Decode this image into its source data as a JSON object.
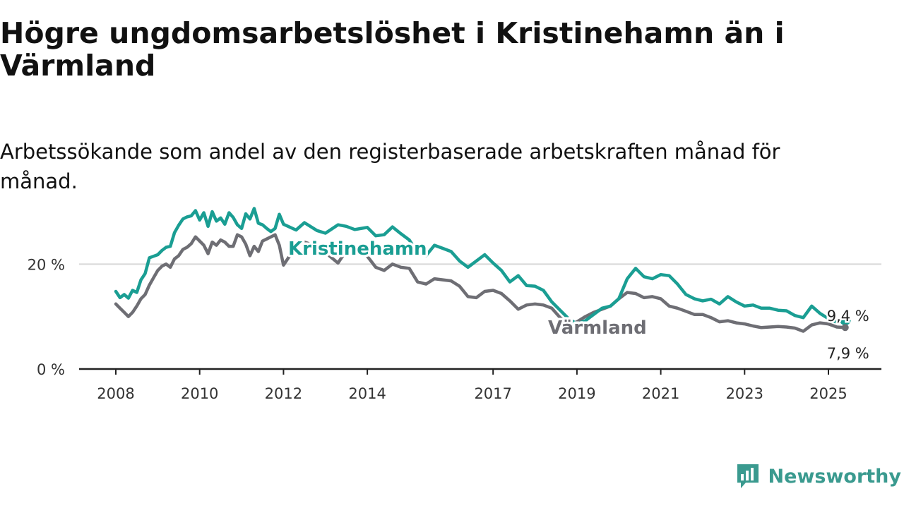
{
  "title": "Högre ungdomsarbetslöshet i Kristinehamn än i Värmland",
  "subtitle": "Arbetssökande som andel av den registerbaserade arbetskraften månad för månad.",
  "brand": {
    "name": "Newsworthy",
    "icon": "newsworthy-logo-icon"
  },
  "colors": {
    "kristinehamn": "#1a9e93",
    "varmland": "#6e6e74",
    "grid": "#d8d8d8",
    "axis": "#222222"
  },
  "chart_data": {
    "type": "line",
    "title": "Högre ungdomsarbetslöshet i Kristinehamn än i Värmland",
    "subtitle": "Arbetssökande som andel av den registerbaserade arbetskraften månad för månad.",
    "xlabel": "",
    "ylabel": "",
    "ylim": [
      0,
      30
    ],
    "y_ticks": [
      0,
      20
    ],
    "y_tick_labels": [
      "0 %",
      "20 %"
    ],
    "x_ticks": [
      2008,
      2010,
      2012,
      2014,
      2017,
      2019,
      2021,
      2023,
      2025
    ],
    "x_tick_labels": [
      "2008",
      "2010",
      "2012",
      "2014",
      "2017",
      "2019",
      "2021",
      "2023",
      "2025"
    ],
    "grid": "horizontal",
    "series": [
      {
        "name": "Kristinehamn",
        "x": [
          2008.0,
          2008.1,
          2008.2,
          2008.3,
          2008.4,
          2008.5,
          2008.6,
          2008.7,
          2008.8,
          2008.9,
          2009.0,
          2009.1,
          2009.2,
          2009.3,
          2009.4,
          2009.5,
          2009.6,
          2009.7,
          2009.8,
          2009.9,
          2010.0,
          2010.1,
          2010.2,
          2010.3,
          2010.4,
          2010.5,
          2010.6,
          2010.7,
          2010.8,
          2010.9,
          2011.0,
          2011.1,
          2011.2,
          2011.3,
          2011.4,
          2011.5,
          2011.6,
          2011.7,
          2011.8,
          2011.9,
          2012.0,
          2012.3,
          2012.5,
          2012.8,
          2013.0,
          2013.3,
          2013.5,
          2013.7,
          2014.0,
          2014.2,
          2014.4,
          2014.6,
          2014.8,
          2015.0,
          2015.2,
          2015.4,
          2015.6,
          2015.8,
          2016.0,
          2016.2,
          2016.4,
          2016.6,
          2016.8,
          2017.0,
          2017.2,
          2017.4,
          2017.6,
          2017.8,
          2018.0,
          2018.2,
          2018.4,
          2018.6,
          2018.8,
          2019.0,
          2019.2,
          2019.4,
          2019.6,
          2019.8,
          2020.0,
          2020.2,
          2020.4,
          2020.6,
          2020.8,
          2021.0,
          2021.2,
          2021.4,
          2021.6,
          2021.8,
          2022.0,
          2022.2,
          2022.4,
          2022.6,
          2022.8,
          2023.0,
          2023.2,
          2023.4,
          2023.6,
          2023.8,
          2024.0,
          2024.2,
          2024.4,
          2024.6,
          2024.8,
          2025.0,
          2025.2,
          2025.4
        ],
        "values": [
          14.8,
          13.6,
          14.2,
          13.5,
          15.0,
          14.6,
          17.0,
          18.2,
          21.2,
          21.5,
          21.8,
          22.6,
          23.2,
          23.4,
          26.0,
          27.4,
          28.6,
          29.0,
          29.2,
          30.2,
          28.4,
          29.8,
          27.2,
          30.0,
          28.2,
          28.8,
          27.6,
          29.8,
          28.9,
          27.5,
          26.8,
          29.6,
          28.6,
          30.6,
          27.8,
          27.5,
          26.8,
          26.2,
          26.8,
          29.5,
          27.6,
          26.5,
          27.9,
          26.4,
          25.9,
          27.5,
          27.2,
          26.6,
          27.0,
          25.4,
          25.6,
          27.1,
          25.8,
          24.6,
          22.2,
          21.6,
          23.6,
          23.0,
          22.4,
          20.6,
          19.4,
          20.6,
          21.8,
          20.2,
          18.8,
          16.6,
          17.8,
          15.9,
          15.8,
          15.0,
          12.8,
          11.2,
          9.6,
          8.6,
          9.2,
          10.4,
          11.6,
          12.0,
          13.4,
          17.2,
          19.2,
          17.6,
          17.2,
          18.0,
          17.8,
          16.2,
          14.2,
          13.4,
          13.0,
          13.3,
          12.4,
          13.8,
          12.8,
          12.0,
          12.2,
          11.6,
          11.6,
          11.2,
          11.1,
          10.2,
          9.8,
          12.0,
          10.6,
          9.6,
          8.9,
          9.4
        ]
      },
      {
        "name": "Värmland",
        "x": [
          2008.0,
          2008.1,
          2008.2,
          2008.3,
          2008.4,
          2008.5,
          2008.6,
          2008.7,
          2008.8,
          2008.9,
          2009.0,
          2009.1,
          2009.2,
          2009.3,
          2009.4,
          2009.5,
          2009.6,
          2009.7,
          2009.8,
          2009.9,
          2010.0,
          2010.1,
          2010.2,
          2010.3,
          2010.4,
          2010.5,
          2010.6,
          2010.7,
          2010.8,
          2010.9,
          2011.0,
          2011.1,
          2011.2,
          2011.3,
          2011.4,
          2011.5,
          2011.6,
          2011.7,
          2011.8,
          2011.9,
          2012.0,
          2012.3,
          2012.5,
          2012.8,
          2013.0,
          2013.3,
          2013.5,
          2013.7,
          2014.0,
          2014.2,
          2014.4,
          2014.6,
          2014.8,
          2015.0,
          2015.2,
          2015.4,
          2015.6,
          2015.8,
          2016.0,
          2016.2,
          2016.4,
          2016.6,
          2016.8,
          2017.0,
          2017.2,
          2017.4,
          2017.6,
          2017.8,
          2018.0,
          2018.2,
          2018.4,
          2018.6,
          2018.8,
          2019.0,
          2019.2,
          2019.4,
          2019.6,
          2019.8,
          2020.0,
          2020.2,
          2020.4,
          2020.6,
          2020.8,
          2021.0,
          2021.2,
          2021.4,
          2021.6,
          2021.8,
          2022.0,
          2022.2,
          2022.4,
          2022.6,
          2022.8,
          2023.0,
          2023.2,
          2023.4,
          2023.6,
          2023.8,
          2024.0,
          2024.2,
          2024.4,
          2024.6,
          2024.8,
          2025.0,
          2025.2,
          2025.4
        ],
        "values": [
          12.4,
          11.6,
          10.8,
          10.0,
          10.8,
          12.0,
          13.4,
          14.2,
          16.0,
          17.4,
          18.8,
          19.6,
          20.0,
          19.4,
          21.0,
          21.6,
          22.8,
          23.2,
          23.9,
          25.2,
          24.4,
          23.6,
          22.0,
          24.2,
          23.6,
          24.6,
          24.2,
          23.4,
          23.4,
          25.6,
          25.2,
          23.8,
          21.6,
          23.4,
          22.4,
          24.4,
          24.8,
          25.2,
          25.6,
          23.6,
          19.8,
          23.4,
          24.2,
          23.4,
          22.2,
          20.2,
          22.6,
          22.8,
          21.5,
          19.4,
          18.8,
          20.0,
          19.4,
          19.2,
          16.6,
          16.2,
          17.2,
          17.0,
          16.8,
          15.8,
          13.8,
          13.6,
          14.8,
          15.0,
          14.4,
          13.0,
          11.4,
          12.2,
          12.4,
          12.2,
          11.6,
          9.8,
          8.4,
          9.0,
          10.0,
          10.8,
          11.4,
          12.0,
          13.4,
          14.6,
          14.4,
          13.6,
          13.8,
          13.4,
          12.0,
          11.6,
          11.0,
          10.4,
          10.4,
          9.8,
          9.0,
          9.2,
          8.8,
          8.6,
          8.2,
          7.9,
          8.0,
          8.1,
          8.0,
          7.8,
          7.2,
          8.4,
          8.8,
          8.6,
          8.0,
          7.9
        ]
      }
    ],
    "annotations": [
      {
        "series": "Kristinehamn",
        "text": "9,4 %"
      },
      {
        "series": "Värmland",
        "text": "7,9 %"
      }
    ]
  }
}
